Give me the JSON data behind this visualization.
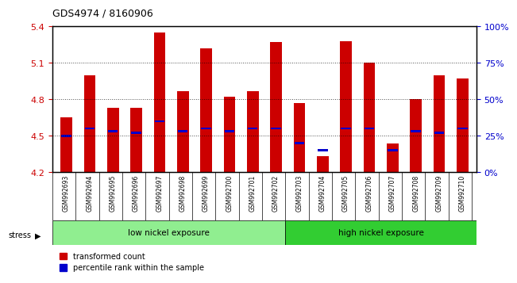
{
  "title": "GDS4974 / 8160906",
  "samples": [
    "GSM992693",
    "GSM992694",
    "GSM992695",
    "GSM992696",
    "GSM992697",
    "GSM992698",
    "GSM992699",
    "GSM992700",
    "GSM992701",
    "GSM992702",
    "GSM992703",
    "GSM992704",
    "GSM992705",
    "GSM992706",
    "GSM992707",
    "GSM992708",
    "GSM992709",
    "GSM992710"
  ],
  "red_values": [
    4.65,
    5.0,
    4.73,
    4.73,
    5.35,
    4.87,
    5.22,
    4.82,
    4.87,
    5.27,
    4.77,
    4.33,
    5.28,
    5.1,
    4.44,
    4.8,
    5.0,
    4.97
  ],
  "blue_values": [
    25,
    30,
    28,
    27,
    35,
    28,
    30,
    28,
    30,
    30,
    20,
    15,
    30,
    30,
    15,
    28,
    27,
    30
  ],
  "ymin": 4.2,
  "ymax": 5.4,
  "yticks": [
    4.2,
    4.5,
    4.8,
    5.1,
    5.4
  ],
  "right_yticks": [
    0,
    25,
    50,
    75,
    100
  ],
  "right_ylabels": [
    "0%",
    "25%",
    "50%",
    "75%",
    "100%"
  ],
  "bar_width": 0.5,
  "red_color": "#cc0000",
  "blue_color": "#0000cc",
  "low_nickel_count": 10,
  "high_nickel_count": 8,
  "low_nickel_label": "low nickel exposure",
  "high_nickel_label": "high nickel exposure",
  "stress_label": "stress",
  "legend_red": "transformed count",
  "legend_blue": "percentile rank within the sample",
  "tick_label_color": "#cc0000",
  "right_tick_color": "#0000cc",
  "grid_color": "#000000",
  "bg_color": "#e8e8e8",
  "plot_bg": "#ffffff"
}
